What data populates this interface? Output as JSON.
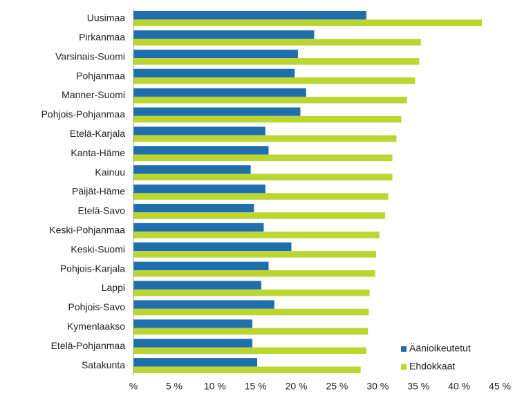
{
  "chart_data": {
    "type": "bar",
    "orientation": "horizontal",
    "categories": [
      "Uusimaa",
      "Pirkanmaa",
      "Varsinais-Suomi",
      "Pohjanmaa",
      "Manner-Suomi",
      "Pohjois-Pohjanmaa",
      "Etelä-Karjala",
      "Kanta-Häme",
      "Kainuu",
      "Päijät-Häme",
      "Etelä-Savo",
      "Keski-Pohjanmaa",
      "Keski-Suomi",
      "Pohjois-Karjala",
      "Lappi",
      "Pohjois-Savo",
      "Kymenlaakso",
      "Etelä-Pohjanmaa",
      "Satakunta"
    ],
    "series": [
      {
        "name": "Äänioikeutetut",
        "color": "#1f6fae",
        "values": [
          28.6,
          22.2,
          20.2,
          19.8,
          21.2,
          20.5,
          16.2,
          16.6,
          14.4,
          16.2,
          14.8,
          16.0,
          19.4,
          16.6,
          15.7,
          17.3,
          14.6,
          14.6,
          15.2
        ]
      },
      {
        "name": "Ehdokkaat",
        "color": "#bcd631",
        "values": [
          42.8,
          35.3,
          35.1,
          34.6,
          33.6,
          32.9,
          32.3,
          31.8,
          31.8,
          31.3,
          30.9,
          30.2,
          29.8,
          29.7,
          29.0,
          28.9,
          28.8,
          28.6,
          27.9
        ]
      }
    ],
    "xlim": [
      0,
      45
    ],
    "xticks": [
      {
        "value": 0,
        "label": "%"
      },
      {
        "value": 5,
        "label": "5 %"
      },
      {
        "value": 10,
        "label": "10 %"
      },
      {
        "value": 15,
        "label": "15 %"
      },
      {
        "value": 20,
        "label": "20 %"
      },
      {
        "value": 25,
        "label": "25 %"
      },
      {
        "value": 30,
        "label": "30 %"
      },
      {
        "value": 35,
        "label": "35 %"
      },
      {
        "value": 40,
        "label": "40 %"
      },
      {
        "value": 45,
        "label": "45 %"
      }
    ],
    "grid": false,
    "legend": "lower right"
  }
}
